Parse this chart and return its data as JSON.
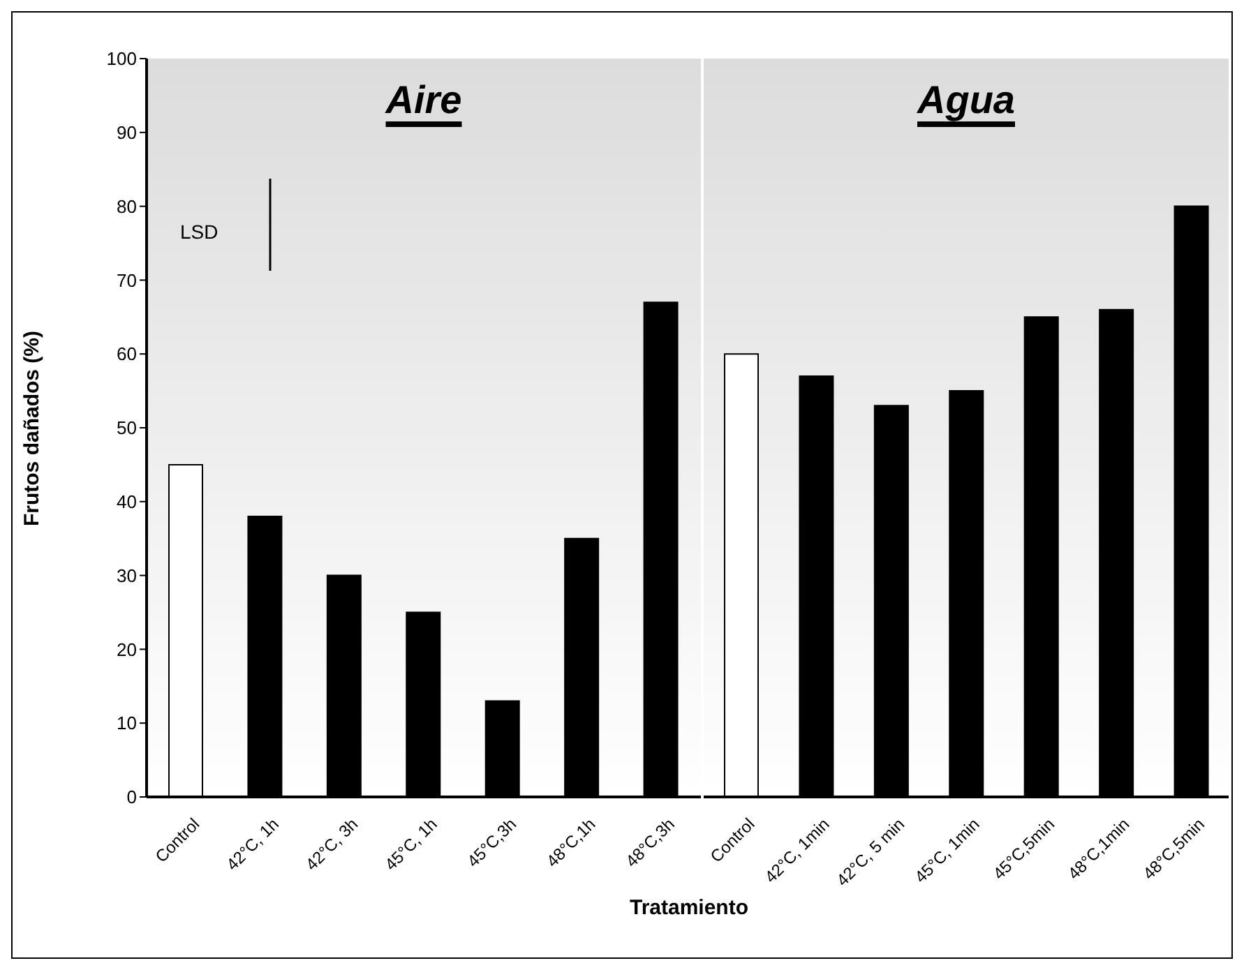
{
  "chart_data": [
    {
      "type": "bar",
      "title": "Aire",
      "ylabel": "Frutos dañados (%)",
      "xlabel": "Tratamiento",
      "categories": [
        "Control",
        "42°C, 1h",
        "42°C, 3h",
        "45°C, 1h",
        "45°C,3h",
        "48°C,1h",
        "48°C,3h"
      ],
      "values": [
        45,
        38,
        30,
        25,
        13,
        35,
        67
      ],
      "colors": [
        "#ffffff",
        "#000000",
        "#000000",
        "#000000",
        "#000000",
        "#000000",
        "#000000"
      ],
      "ylim": [
        0,
        100
      ],
      "yticks": [
        0,
        10,
        20,
        30,
        40,
        50,
        60,
        70,
        80,
        90,
        100
      ],
      "annotations": [
        "LSD"
      ]
    },
    {
      "type": "bar",
      "title": "Agua",
      "categories": [
        "Control",
        "42°C, 1min",
        "42°C, 5 min",
        "45°C, 1min",
        "45°C,5min",
        "48°C,1min",
        "48°C,5min"
      ],
      "values": [
        60,
        57,
        53,
        55,
        65,
        66,
        80
      ],
      "colors": [
        "#ffffff",
        "#000000",
        "#000000",
        "#000000",
        "#000000",
        "#000000",
        "#000000"
      ],
      "ylim": [
        0,
        100
      ],
      "tick_labels": "x"
    }
  ]
}
